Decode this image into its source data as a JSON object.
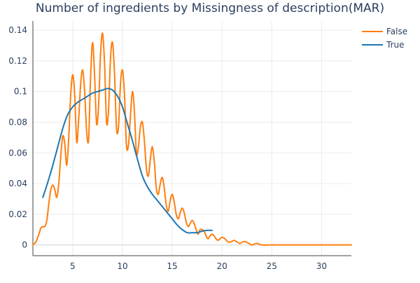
{
  "chart_data": {
    "type": "line",
    "title": "Number of ingredients by Missingness of description(MAR)",
    "xlabel": "",
    "ylabel": "",
    "xlim": [
      1,
      33
    ],
    "ylim": [
      -0.007,
      0.146
    ],
    "x_ticks": [
      5,
      10,
      15,
      20,
      25,
      30
    ],
    "y_ticks": [
      0,
      0.02,
      0.04,
      0.06,
      0.08,
      0.1,
      0.12,
      0.14
    ],
    "x_tick_labels": [
      "5",
      "10",
      "15",
      "20",
      "25",
      "30"
    ],
    "y_tick_labels": [
      "0",
      "0.02",
      "0.04",
      "0.06",
      "0.08",
      "0.1",
      "0.12",
      "0.14"
    ],
    "grid": true,
    "legend_position": "top-right",
    "series": [
      {
        "name": "False",
        "color": "#ff7f0e",
        "points": [
          [
            1.0,
            0.0
          ],
          [
            1.3,
            0.002
          ],
          [
            1.6,
            0.007
          ],
          [
            1.8,
            0.011
          ],
          [
            2.0,
            0.012
          ],
          [
            2.2,
            0.012
          ],
          [
            2.4,
            0.016
          ],
          [
            2.6,
            0.027
          ],
          [
            2.8,
            0.036
          ],
          [
            3.0,
            0.039
          ],
          [
            3.2,
            0.036
          ],
          [
            3.4,
            0.031
          ],
          [
            3.6,
            0.04
          ],
          [
            3.8,
            0.058
          ],
          [
            4.0,
            0.071
          ],
          [
            4.2,
            0.066
          ],
          [
            4.4,
            0.052
          ],
          [
            4.6,
            0.07
          ],
          [
            4.8,
            0.098
          ],
          [
            5.0,
            0.111
          ],
          [
            5.2,
            0.098
          ],
          [
            5.4,
            0.067
          ],
          [
            5.6,
            0.082
          ],
          [
            5.8,
            0.105
          ],
          [
            6.0,
            0.114
          ],
          [
            6.2,
            0.1
          ],
          [
            6.4,
            0.074
          ],
          [
            6.6,
            0.069
          ],
          [
            6.8,
            0.11
          ],
          [
            7.0,
            0.132
          ],
          [
            7.2,
            0.11
          ],
          [
            7.4,
            0.079
          ],
          [
            7.6,
            0.091
          ],
          [
            7.8,
            0.125
          ],
          [
            8.0,
            0.138
          ],
          [
            8.2,
            0.118
          ],
          [
            8.4,
            0.08
          ],
          [
            8.6,
            0.088
          ],
          [
            8.8,
            0.122
          ],
          [
            9.0,
            0.132
          ],
          [
            9.2,
            0.112
          ],
          [
            9.4,
            0.076
          ],
          [
            9.6,
            0.077
          ],
          [
            9.8,
            0.105
          ],
          [
            10.0,
            0.114
          ],
          [
            10.2,
            0.098
          ],
          [
            10.4,
            0.065
          ],
          [
            10.6,
            0.065
          ],
          [
            10.8,
            0.084
          ],
          [
            11.0,
            0.1
          ],
          [
            11.2,
            0.087
          ],
          [
            11.4,
            0.06
          ],
          [
            11.6,
            0.064
          ],
          [
            11.8,
            0.077
          ],
          [
            12.0,
            0.08
          ],
          [
            12.2,
            0.068
          ],
          [
            12.4,
            0.05
          ],
          [
            12.6,
            0.045
          ],
          [
            12.8,
            0.056
          ],
          [
            13.0,
            0.064
          ],
          [
            13.2,
            0.054
          ],
          [
            13.4,
            0.037
          ],
          [
            13.6,
            0.033
          ],
          [
            13.8,
            0.04
          ],
          [
            14.0,
            0.044
          ],
          [
            14.2,
            0.037
          ],
          [
            14.4,
            0.026
          ],
          [
            14.6,
            0.022
          ],
          [
            14.8,
            0.029
          ],
          [
            15.0,
            0.033
          ],
          [
            15.2,
            0.028
          ],
          [
            15.4,
            0.02
          ],
          [
            15.6,
            0.017
          ],
          [
            15.8,
            0.021
          ],
          [
            16.0,
            0.024
          ],
          [
            16.2,
            0.021
          ],
          [
            16.4,
            0.015
          ],
          [
            16.6,
            0.012
          ],
          [
            16.8,
            0.014
          ],
          [
            17.0,
            0.016
          ],
          [
            17.2,
            0.014
          ],
          [
            17.4,
            0.01
          ],
          [
            17.6,
            0.007
          ],
          [
            17.8,
            0.01
          ],
          [
            18.0,
            0.01
          ],
          [
            18.2,
            0.009
          ],
          [
            18.4,
            0.006
          ],
          [
            18.6,
            0.004
          ],
          [
            18.8,
            0.006
          ],
          [
            19.0,
            0.007
          ],
          [
            19.2,
            0.006
          ],
          [
            19.4,
            0.004
          ],
          [
            19.6,
            0.003
          ],
          [
            19.8,
            0.004
          ],
          [
            20.0,
            0.005
          ],
          [
            20.3,
            0.004
          ],
          [
            20.6,
            0.002
          ],
          [
            20.9,
            0.002
          ],
          [
            21.2,
            0.003
          ],
          [
            21.5,
            0.002
          ],
          [
            21.8,
            0.001
          ],
          [
            22.1,
            0.002
          ],
          [
            22.4,
            0.002
          ],
          [
            22.7,
            0.001
          ],
          [
            23.0,
            0.0
          ],
          [
            23.5,
            0.001
          ],
          [
            24.0,
            0.0
          ],
          [
            25.0,
            0.0
          ],
          [
            27.0,
            0.0
          ],
          [
            30.0,
            0.0
          ],
          [
            33.0,
            0.0
          ]
        ]
      },
      {
        "name": "True",
        "color": "#1f77b4",
        "points": [
          [
            2.0,
            0.031
          ],
          [
            2.5,
            0.041
          ],
          [
            3.0,
            0.052
          ],
          [
            3.5,
            0.064
          ],
          [
            4.0,
            0.076
          ],
          [
            4.5,
            0.085
          ],
          [
            5.0,
            0.09
          ],
          [
            5.5,
            0.093
          ],
          [
            6.0,
            0.095
          ],
          [
            6.5,
            0.097
          ],
          [
            7.0,
            0.099
          ],
          [
            7.5,
            0.1
          ],
          [
            8.0,
            0.101
          ],
          [
            8.5,
            0.102
          ],
          [
            9.0,
            0.101
          ],
          [
            9.5,
            0.097
          ],
          [
            10.0,
            0.09
          ],
          [
            10.5,
            0.079
          ],
          [
            11.0,
            0.068
          ],
          [
            11.5,
            0.056
          ],
          [
            12.0,
            0.045
          ],
          [
            12.5,
            0.038
          ],
          [
            13.0,
            0.033
          ],
          [
            13.5,
            0.029
          ],
          [
            14.0,
            0.025
          ],
          [
            14.5,
            0.021
          ],
          [
            15.0,
            0.017
          ],
          [
            15.5,
            0.013
          ],
          [
            16.0,
            0.01
          ],
          [
            16.5,
            0.008
          ],
          [
            17.0,
            0.008
          ],
          [
            17.5,
            0.008
          ],
          [
            18.0,
            0.009
          ],
          [
            18.5,
            0.0095
          ],
          [
            19.0,
            0.0095
          ]
        ]
      }
    ]
  }
}
